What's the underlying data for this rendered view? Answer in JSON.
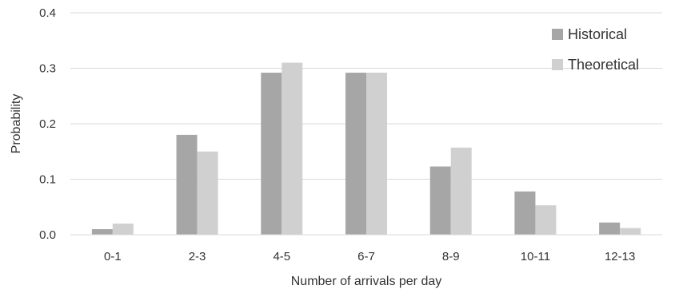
{
  "chart_data": {
    "type": "bar",
    "title": "",
    "xlabel": "Number of arrivals per day",
    "ylabel": "Probability",
    "categories": [
      "0-1",
      "2-3",
      "4-5",
      "6-7",
      "8-9",
      "10-11",
      "12-13"
    ],
    "series": [
      {
        "name": "Historical",
        "color": "#a6a6a6",
        "values": [
          0.01,
          0.18,
          0.292,
          0.292,
          0.123,
          0.078,
          0.022
        ]
      },
      {
        "name": "Theoretical",
        "color": "#d0d0d0",
        "values": [
          0.02,
          0.15,
          0.31,
          0.292,
          0.157,
          0.053,
          0.012
        ]
      }
    ],
    "ylim": [
      0,
      0.4
    ],
    "yticks": [
      "0.0",
      "0.1",
      "0.2",
      "0.3",
      "0.4"
    ],
    "grid": true,
    "legend_position": "top-right"
  }
}
